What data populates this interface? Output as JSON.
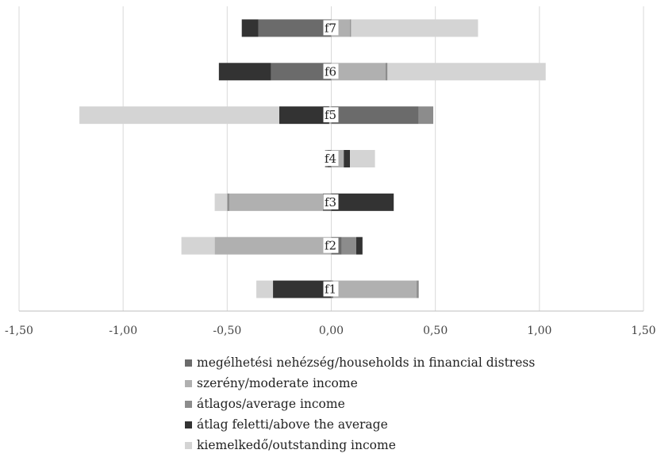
{
  "chart_data": {
    "type": "bar",
    "orientation": "horizontal",
    "stacked": true,
    "categories": [
      "f1",
      "f2",
      "f3",
      "f4",
      "f5",
      "f6",
      "f7"
    ],
    "xlim": [
      -1.5,
      1.5
    ],
    "xticks": [
      "-1,50",
      "-1,00",
      "-0,50",
      "0,00",
      "0,50",
      "1,00",
      "1,50"
    ],
    "grid": "vertical",
    "legend_position": "bottom",
    "series": [
      {
        "name": "megélhetési nehézség/households in financial distress",
        "color": "#6b6b6b",
        "values": [
          0.01,
          0.05,
          -0.04,
          -0.02,
          0.42,
          -0.29,
          -0.35
        ]
      },
      {
        "name": "szerény/moderate income",
        "color": "#b0b0b0",
        "values": [
          0.4,
          -0.56,
          -0.45,
          0.06,
          -0.01,
          0.26,
          0.09
        ]
      },
      {
        "name": "átlagos/average income",
        "color": "#8c8c8c",
        "values": [
          0.01,
          0.07,
          -0.01,
          -0.01,
          0.07,
          0.01,
          0.005
        ]
      },
      {
        "name": "átlag feletti/above the average",
        "color": "#333333",
        "values": [
          -0.28,
          0.03,
          0.3,
          0.03,
          -0.24,
          -0.25,
          -0.08
        ]
      },
      {
        "name": "kiemelkedő/outstanding income",
        "color": "#d4d4d4",
        "values": [
          -0.08,
          -0.16,
          -0.06,
          0.12,
          -0.96,
          0.76,
          0.61
        ]
      }
    ]
  }
}
